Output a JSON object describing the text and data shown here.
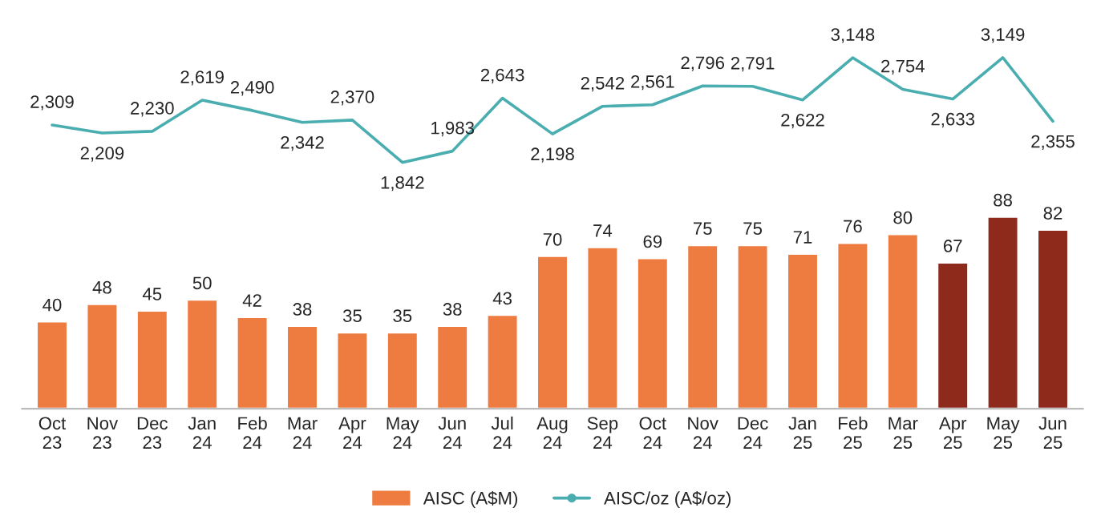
{
  "chart_data": [
    {
      "type": "line",
      "categories": [
        null,
        null,
        null,
        null,
        null,
        null,
        null,
        null,
        null,
        null,
        null,
        null,
        null,
        null,
        null,
        null,
        null,
        null,
        null,
        null,
        null
      ],
      "series": [
        {
          "name": "AISC/oz (A$/oz)",
          "color": "#4aaeb0",
          "values": [
            2309,
            2209,
            2230,
            2619,
            2490,
            2342,
            2370,
            1842,
            1983,
            2643,
            2198,
            2542,
            2561,
            2796,
            2791,
            2622,
            3148,
            2754,
            2633,
            3149,
            2355
          ],
          "value_labels": [
            "2,309",
            "2,209",
            "2,230",
            "2,619",
            "2,490",
            "2,342",
            "2,370",
            "1,842",
            "1,983",
            "2,643",
            "2,198",
            "2,542",
            "2,561",
            "2,796",
            "2,791",
            "2,622",
            "3,148",
            "2,754",
            "2,633",
            "3,149",
            "2,355"
          ]
        }
      ],
      "tick_labels": false,
      "legend": "bottom",
      "grid": false
    },
    {
      "type": "bar",
      "categories": [
        "Oct\n23",
        "Nov\n23",
        "Dec\n23",
        "Jan\n24",
        "Feb\n24",
        "Mar\n24",
        "Apr\n24",
        "May\n24",
        "Jun\n24",
        "Jul\n24",
        "Aug\n24",
        "Sep\n24",
        "Oct\n24",
        "Nov\n24",
        "Dec\n24",
        "Jan\n25",
        "Feb\n25",
        "Mar\n25",
        "Apr\n25",
        "May\n25",
        "Jun\n25"
      ],
      "series": [
        {
          "name": "AISC (A$M)",
          "color": "#ee7b3f",
          "colors": [
            "#ee7b3f",
            "#ee7b3f",
            "#ee7b3f",
            "#ee7b3f",
            "#ee7b3f",
            "#ee7b3f",
            "#ee7b3f",
            "#ee7b3f",
            "#ee7b3f",
            "#ee7b3f",
            "#ee7b3f",
            "#ee7b3f",
            "#ee7b3f",
            "#ee7b3f",
            "#ee7b3f",
            "#ee7b3f",
            "#ee7b3f",
            "#ee7b3f",
            "#8e2a1c",
            "#8e2a1c",
            "#8e2a1c"
          ],
          "values": [
            40,
            48,
            45,
            50,
            42,
            38,
            35,
            35,
            38,
            43,
            70,
            74,
            69,
            75,
            75,
            71,
            76,
            80,
            67,
            88,
            82
          ],
          "value_labels": [
            "40",
            "48",
            "45",
            "50",
            "42",
            "38",
            "35",
            "35",
            "38",
            "43",
            "70",
            "74",
            "69",
            "75",
            "75",
            "71",
            "76",
            "80",
            "67",
            "88",
            "82"
          ]
        }
      ],
      "tick_labels": "x",
      "legend": "bottom",
      "grid": false
    }
  ]
}
